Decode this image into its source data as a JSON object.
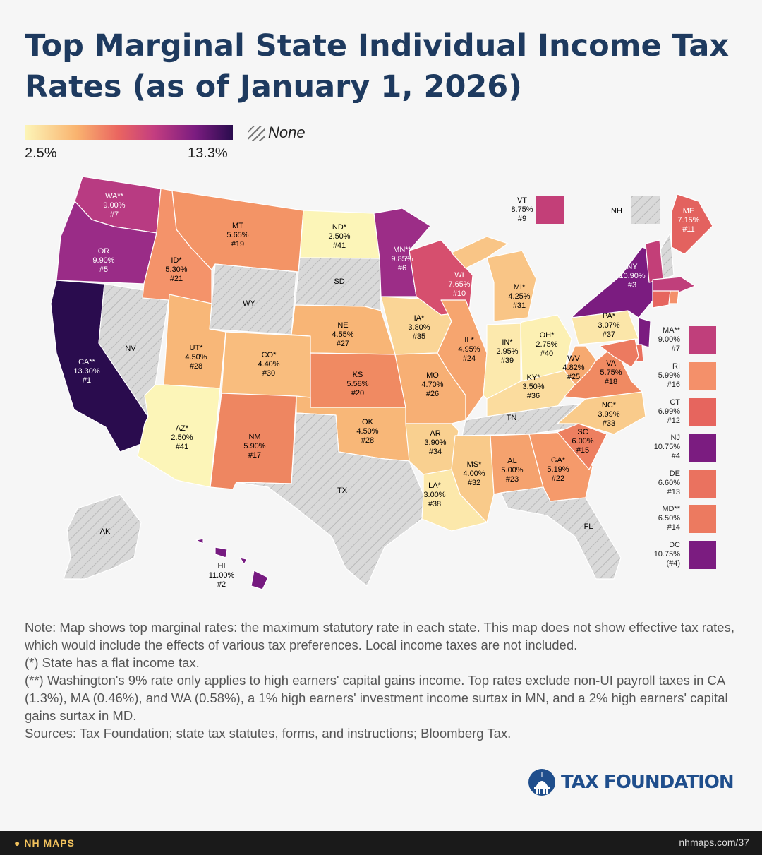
{
  "title": "Top Marginal State Individual Income Tax Rates (as of January 1, 2026)",
  "legend": {
    "min": "2.5%",
    "max": "13.3%",
    "none_label": "None"
  },
  "colors": {
    "title": "#1e3a5f",
    "none_fill": "#d9d9d9",
    "brand": "#1f4e8c",
    "footer_bg": "#1a1a1a"
  },
  "states": [
    {
      "id": "WA",
      "code": "WA**",
      "rate": "9.00%",
      "rank": "#7",
      "rate_value": 9.0,
      "color": "#b83b82"
    },
    {
      "id": "OR",
      "code": "OR",
      "rate": "9.90%",
      "rank": "#5",
      "rate_value": 9.9,
      "color": "#9a2c87"
    },
    {
      "id": "CA",
      "code": "CA**",
      "rate": "13.30%",
      "rank": "#1",
      "rate_value": 13.3,
      "color": "#2a0c4e"
    },
    {
      "id": "ID",
      "code": "ID*",
      "rate": "5.30%",
      "rank": "#21",
      "rate_value": 5.3,
      "color": "#f4936a"
    },
    {
      "id": "MT",
      "code": "MT",
      "rate": "5.65%",
      "rank": "#19",
      "rate_value": 5.65,
      "color": "#f39466"
    },
    {
      "id": "ND",
      "code": "ND*",
      "rate": "2.50%",
      "rank": "#41",
      "rate_value": 2.5,
      "color": "#fcf5b8"
    },
    {
      "id": "MN",
      "code": "MN**",
      "rate": "9.85%",
      "rank": "#6",
      "rate_value": 9.85,
      "color": "#9c2d87"
    },
    {
      "id": "WI",
      "code": "WI",
      "rate": "7.65%",
      "rank": "#10",
      "rate_value": 7.65,
      "color": "#d64f6e"
    },
    {
      "id": "MI",
      "code": "MI*",
      "rate": "4.25%",
      "rank": "#31",
      "rate_value": 4.25,
      "color": "#f9c586"
    },
    {
      "id": "NY",
      "code": "NY",
      "rate": "10.90%",
      "rank": "#3",
      "rate_value": 10.9,
      "color": "#7b1c80"
    },
    {
      "id": "ME",
      "code": "ME",
      "rate": "7.15%",
      "rank": "#11",
      "rate_value": 7.15,
      "color": "#e3625f"
    },
    {
      "id": "UT",
      "code": "UT*",
      "rate": "4.50%",
      "rank": "#28",
      "rate_value": 4.5,
      "color": "#f8b778"
    },
    {
      "id": "CO",
      "code": "CO*",
      "rate": "4.40%",
      "rank": "#30",
      "rate_value": 4.4,
      "color": "#f9bd7e"
    },
    {
      "id": "NE",
      "code": "NE",
      "rate": "4.55%",
      "rank": "#27",
      "rate_value": 4.55,
      "color": "#f8b576"
    },
    {
      "id": "IA",
      "code": "IA*",
      "rate": "3.80%",
      "rank": "#35",
      "rate_value": 3.8,
      "color": "#fad596"
    },
    {
      "id": "IL",
      "code": "IL*",
      "rate": "4.95%",
      "rank": "#24",
      "rate_value": 4.95,
      "color": "#f6a56f"
    },
    {
      "id": "IN",
      "code": "IN*",
      "rate": "2.95%",
      "rank": "#39",
      "rate_value": 2.95,
      "color": "#fce9ad"
    },
    {
      "id": "OH",
      "code": "OH*",
      "rate": "2.75%",
      "rank": "#40",
      "rate_value": 2.75,
      "color": "#fcf0b3"
    },
    {
      "id": "PA",
      "code": "PA*",
      "rate": "3.07%",
      "rank": "#37",
      "rate_value": 3.07,
      "color": "#fbe6a9"
    },
    {
      "id": "KS",
      "code": "KS",
      "rate": "5.58%",
      "rank": "#20",
      "rate_value": 5.58,
      "color": "#f08a62"
    },
    {
      "id": "MO",
      "code": "MO",
      "rate": "4.70%",
      "rank": "#26",
      "rate_value": 4.7,
      "color": "#f7af74"
    },
    {
      "id": "KY",
      "code": "KY*",
      "rate": "3.50%",
      "rank": "#36",
      "rate_value": 3.5,
      "color": "#fbdc9e"
    },
    {
      "id": "WV",
      "code": "WV",
      "rate": "4.82%",
      "rank": "#25",
      "rate_value": 4.82,
      "color": "#f6a970"
    },
    {
      "id": "VA",
      "code": "VA",
      "rate": "5.75%",
      "rank": "#18",
      "rate_value": 5.75,
      "color": "#f08a62"
    },
    {
      "id": "NC",
      "code": "NC*",
      "rate": "3.99%",
      "rank": "#33",
      "rate_value": 3.99,
      "color": "#f9cb8b"
    },
    {
      "id": "AZ",
      "code": "AZ*",
      "rate": "2.50%",
      "rank": "#41",
      "rate_value": 2.5,
      "color": "#fcf5b8"
    },
    {
      "id": "NM",
      "code": "NM",
      "rate": "5.90%",
      "rank": "#17",
      "rate_value": 5.9,
      "color": "#ee8661"
    },
    {
      "id": "OK",
      "code": "OK",
      "rate": "4.50%",
      "rank": "#28",
      "rate_value": 4.5,
      "color": "#f8b778"
    },
    {
      "id": "AR",
      "code": "AR",
      "rate": "3.90%",
      "rank": "#34",
      "rate_value": 3.9,
      "color": "#f9d090"
    },
    {
      "id": "MS",
      "code": "MS*",
      "rate": "4.00%",
      "rank": "#32",
      "rate_value": 4.0,
      "color": "#f9ca8a"
    },
    {
      "id": "AL",
      "code": "AL",
      "rate": "5.00%",
      "rank": "#23",
      "rate_value": 5.0,
      "color": "#f5a26e"
    },
    {
      "id": "GA",
      "code": "GA*",
      "rate": "5.19%",
      "rank": "#22",
      "rate_value": 5.19,
      "color": "#f59a6b"
    },
    {
      "id": "SC",
      "code": "SC",
      "rate": "6.00%",
      "rank": "#15",
      "rate_value": 6.0,
      "color": "#ed7f60"
    },
    {
      "id": "LA",
      "code": "LA*",
      "rate": "3.00%",
      "rank": "#38",
      "rate_value": 3.0,
      "color": "#fce8ab"
    },
    {
      "id": "HI",
      "code": "HI",
      "rate": "11.00%",
      "rank": "#2",
      "rate_value": 11.0,
      "color": "#761a80"
    }
  ],
  "no_tax_states": [
    "NV",
    "WY",
    "SD",
    "TX",
    "TN",
    "FL",
    "AK",
    "NH"
  ],
  "callouts": [
    {
      "id": "VT",
      "code": "VT",
      "rate": "8.75%",
      "rank": "#9",
      "rate_value": 8.75,
      "color": "#c33f78"
    },
    {
      "id": "NH",
      "code": "NH",
      "rate": "",
      "rank": "",
      "rate_value": null,
      "color": "none"
    }
  ],
  "side_legend": [
    {
      "code": "MA**",
      "rate": "9.00%",
      "rank": "#7",
      "rate_value": 9.0,
      "color": "#c03f7b"
    },
    {
      "code": "RI",
      "rate": "5.99%",
      "rank": "#16",
      "rate_value": 5.99,
      "color": "#f4906a"
    },
    {
      "code": "CT",
      "rate": "6.99%",
      "rank": "#12",
      "rate_value": 6.99,
      "color": "#e6655e"
    },
    {
      "code": "NJ",
      "rate": "10.75%",
      "rank": "#4",
      "rate_value": 10.75,
      "color": "#7b1c80"
    },
    {
      "code": "DE",
      "rate": "6.60%",
      "rank": "#13",
      "rate_value": 6.6,
      "color": "#ea725f"
    },
    {
      "code": "MD**",
      "rate": "6.50%",
      "rank": "#14",
      "rate_value": 6.5,
      "color": "#ec7a60"
    },
    {
      "code": "DC",
      "rate": "10.75%",
      "rank": "(#4)",
      "rate_value": 10.75,
      "color": "#7b1c80"
    }
  ],
  "notes": [
    "Note: Map shows top marginal rates: the maximum statutory rate in each state. This map does not show effective tax rates, which would include the effects of various tax preferences. Local income taxes are not included.",
    "(*) State has a flat income tax.",
    "(**) Washington's 9% rate only applies to high earners' capital gains income. Top rates exclude non-UI payroll taxes in CA (1.3%), MA (0.46%), and WA (0.58%), a 1% high earners' investment income surtax in MN, and a 2% high earners' capital gains surtax in MD.",
    "Sources: Tax Foundation; state tax statutes, forms, and instructions; Bloomberg Tax."
  ],
  "brand": "TAX FOUNDATION",
  "footer": {
    "brand": "NH MAPS",
    "url": "nhmaps.com/37"
  }
}
